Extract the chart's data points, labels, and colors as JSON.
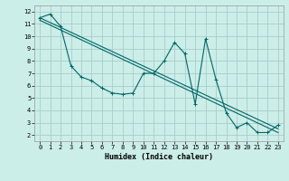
{
  "title": "",
  "xlabel": "Humidex (Indice chaleur)",
  "background_color": "#cceee8",
  "grid_color": "#aacccc",
  "line_color": "#006666",
  "x_values": [
    0,
    1,
    2,
    3,
    4,
    5,
    6,
    7,
    8,
    9,
    10,
    11,
    12,
    13,
    14,
    15,
    16,
    17,
    18,
    19,
    20,
    21,
    22,
    23
  ],
  "series1": [
    11.5,
    11.8,
    10.8,
    7.6,
    6.7,
    6.4,
    5.8,
    5.4,
    5.3,
    5.4,
    7.0,
    7.0,
    8.0,
    9.5,
    8.6,
    4.5,
    9.8,
    6.5,
    3.8,
    2.6,
    3.0,
    2.2,
    2.2,
    2.8
  ],
  "trend1_y_start": 11.5,
  "trend1_y_end": 2.5,
  "trend2_y_start": 11.3,
  "trend2_y_end": 2.2,
  "ylim": [
    1.5,
    12.5
  ],
  "xlim": [
    -0.5,
    23.5
  ],
  "yticks": [
    2,
    3,
    4,
    5,
    6,
    7,
    8,
    9,
    10,
    11,
    12
  ],
  "xticks": [
    0,
    1,
    2,
    3,
    4,
    5,
    6,
    7,
    8,
    9,
    10,
    11,
    12,
    13,
    14,
    15,
    16,
    17,
    18,
    19,
    20,
    21,
    22,
    23
  ],
  "xlabel_fontsize": 6,
  "tick_fontsize": 5
}
